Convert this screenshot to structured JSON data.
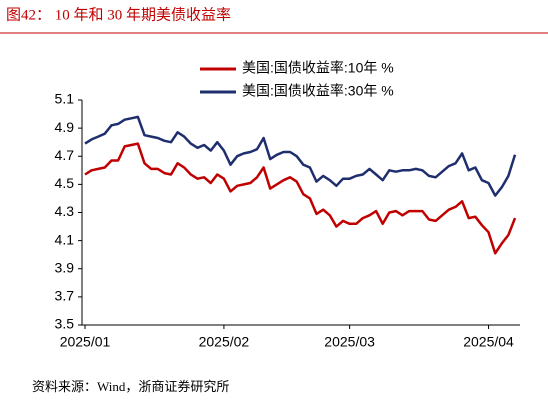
{
  "chart_data": {
    "type": "line",
    "title": "图42：  10 年和 30 年期美债收益率",
    "source": "资料来源：Wind，浙商证券研究所",
    "categories": [
      "2025/01",
      null,
      null,
      null,
      null,
      null,
      null,
      null,
      null,
      null,
      null,
      null,
      null,
      null,
      null,
      null,
      null,
      null,
      null,
      null,
      null,
      "2025/02",
      null,
      null,
      null,
      null,
      null,
      null,
      null,
      null,
      null,
      null,
      null,
      null,
      null,
      null,
      null,
      null,
      null,
      null,
      "2025/03",
      null,
      null,
      null,
      null,
      null,
      null,
      null,
      null,
      null,
      null,
      null,
      null,
      null,
      null,
      null,
      null,
      null,
      null,
      null,
      null,
      "2025/04",
      null,
      null,
      null,
      null
    ],
    "series": [
      {
        "name": "美国:国债收益率:10年 %",
        "color": "#c00000",
        "values": [
          4.57,
          4.6,
          4.61,
          4.62,
          4.67,
          4.67,
          4.77,
          4.78,
          4.79,
          4.65,
          4.61,
          4.61,
          4.58,
          4.57,
          4.65,
          4.62,
          4.57,
          4.54,
          4.55,
          4.51,
          4.57,
          4.54,
          4.45,
          4.49,
          4.5,
          4.51,
          4.55,
          4.62,
          4.47,
          4.5,
          4.53,
          4.55,
          4.52,
          4.43,
          4.4,
          4.29,
          4.32,
          4.28,
          4.2,
          4.24,
          4.22,
          4.22,
          4.26,
          4.28,
          4.31,
          4.22,
          4.3,
          4.31,
          4.28,
          4.31,
          4.31,
          4.31,
          4.25,
          4.24,
          4.28,
          4.32,
          4.34,
          4.38,
          4.26,
          4.27,
          4.21,
          4.16,
          4.01,
          4.08,
          4.14,
          4.26
        ]
      },
      {
        "name": "美国:国债收益率:30年 %",
        "color": "#1f2f6e",
        "values": [
          4.79,
          4.82,
          4.84,
          4.86,
          4.92,
          4.93,
          4.96,
          4.97,
          4.98,
          4.85,
          4.84,
          4.83,
          4.81,
          4.8,
          4.87,
          4.84,
          4.79,
          4.76,
          4.78,
          4.74,
          4.8,
          4.74,
          4.64,
          4.7,
          4.72,
          4.73,
          4.75,
          4.83,
          4.68,
          4.71,
          4.73,
          4.73,
          4.7,
          4.64,
          4.62,
          4.52,
          4.56,
          4.53,
          4.49,
          4.54,
          4.54,
          4.56,
          4.57,
          4.61,
          4.57,
          4.53,
          4.6,
          4.59,
          4.6,
          4.6,
          4.61,
          4.6,
          4.56,
          4.55,
          4.59,
          4.63,
          4.65,
          4.72,
          4.6,
          4.62,
          4.53,
          4.51,
          4.42,
          4.48,
          4.56,
          4.71
        ]
      }
    ],
    "ylim": [
      3.5,
      5.1
    ],
    "yticks": [
      3.5,
      3.7,
      3.9,
      4.1,
      4.3,
      4.5,
      4.7,
      4.9,
      5.1
    ],
    "grid": false,
    "legend": "top"
  }
}
